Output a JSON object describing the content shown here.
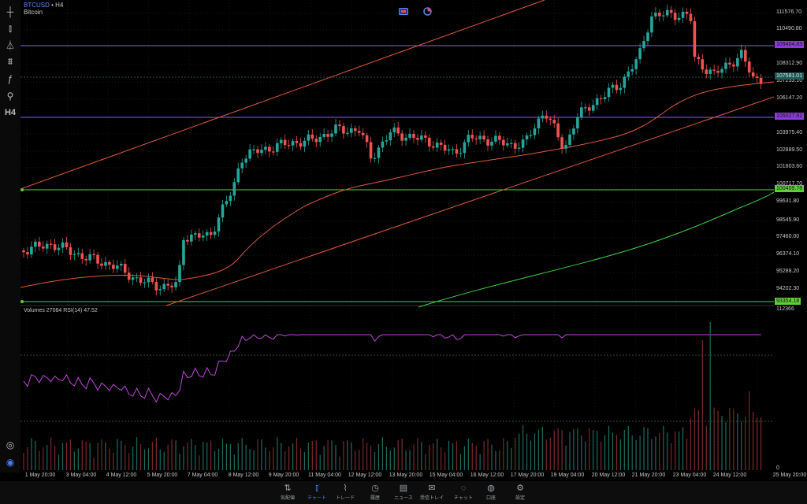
{
  "symbol": {
    "code": "BTCUSD",
    "separator": "•",
    "timeframe": "H4",
    "name": "Bitcoin"
  },
  "toolbar": {
    "items": [
      {
        "name": "crosshair-icon",
        "glyph": "┼"
      },
      {
        "name": "candles-icon",
        "glyph": "⫾"
      },
      {
        "name": "indicators-icon",
        "glyph": "⏃"
      },
      {
        "name": "filters-icon",
        "glyph": "⩩"
      },
      {
        "name": "function-icon",
        "glyph": "ƒ"
      },
      {
        "name": "shapes-icon",
        "glyph": "⚲"
      },
      {
        "name": "timeframe-label",
        "glyph": "H4"
      }
    ],
    "bottom": [
      {
        "name": "screenshot-icon",
        "glyph": "◎"
      },
      {
        "name": "settings-round-icon",
        "glyph": "◉"
      }
    ]
  },
  "indicator": {
    "label": "Volumes 27084  RSI(14) 47.52"
  },
  "price_axis": {
    "labels": [
      "111576.70",
      "110490.80",
      "108312.90",
      "107233.10",
      "106147.20",
      "103975.40",
      "102889.50",
      "101803.60",
      "100717.70",
      "99631.80",
      "98545.90",
      "97460.00",
      "96374.10",
      "95288.20",
      "94202.30"
    ],
    "boxes": {
      "upper_purple": "109404.83",
      "current": "107581.01",
      "mid_purple": "105027.82",
      "green_upper": "100409.78",
      "green_lower": "93354.18"
    },
    "volume_max": "112366",
    "volume_zero": "0"
  },
  "time_axis": {
    "labels": [
      "1 May 20:00",
      "3 May 04:00",
      "4 May 12:00",
      "5 May 20:00",
      "7 May 04:00",
      "8 May 12:00",
      "9 May 20:00",
      "11 May 04:00",
      "12 May 12:00",
      "13 May 20:00",
      "15 May 04:00",
      "16 May 12:00",
      "17 May 20:00",
      "19 May 04:00",
      "20 May 12:00",
      "21 May 20:00",
      "23 May 04:00",
      "24 May 12:00",
      "25 May 20:00"
    ]
  },
  "nav": {
    "items": [
      {
        "label": "気配値",
        "icon": "⇅",
        "name": "nav-quotes"
      },
      {
        "label": "チャート",
        "icon": "⫾",
        "name": "nav-chart",
        "active": true
      },
      {
        "label": "トレード",
        "icon": "⌇",
        "name": "nav-trade"
      },
      {
        "label": "履歴",
        "icon": "◷",
        "name": "nav-history"
      },
      {
        "label": "ニュース",
        "icon": "▤",
        "name": "nav-news"
      },
      {
        "label": "受信トレイ",
        "icon": "✉",
        "name": "nav-inbox"
      },
      {
        "label": "チャット",
        "icon": "◌",
        "name": "nav-chat"
      },
      {
        "label": "口座",
        "icon": "◍",
        "name": "nav-account"
      },
      {
        "label": "設定",
        "icon": "⚙",
        "name": "nav-settings"
      }
    ]
  },
  "colors": {
    "bull": "#26a69a",
    "bear": "#ef5350",
    "rsi": "#c048d8",
    "purple_line": "#8a5cf6",
    "green_line": "#5dcf3a",
    "ma_fast": "#e0583a",
    "ma_slow": "#3ecf4a",
    "current_box": "#1f5a58"
  }
}
